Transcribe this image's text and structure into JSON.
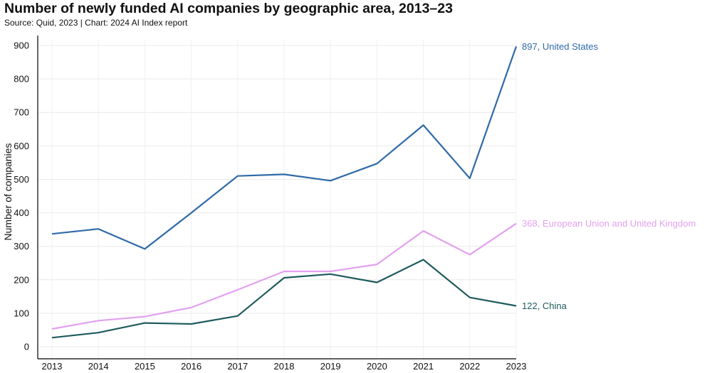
{
  "chart_data": {
    "type": "line",
    "title": "Number of newly funded AI companies by geographic area, 2013–23",
    "subtitle": "Source: Quid, 2023 | Chart: 2024 AI Index report",
    "xlabel": "",
    "ylabel": "Number of companies",
    "x": [
      "2013",
      "2014",
      "2015",
      "2016",
      "2017",
      "2018",
      "2019",
      "2020",
      "2021",
      "2022",
      "2023"
    ],
    "ylim": [
      0,
      900
    ],
    "yticks": [
      0,
      100,
      200,
      300,
      400,
      500,
      600,
      700,
      800,
      900
    ],
    "grid": true,
    "series": [
      {
        "name": "United States",
        "color": "#2f6aa8",
        "values": [
          337,
          352,
          292,
          400,
          510,
          515,
          496,
          547,
          662,
          503,
          897
        ],
        "end_label": "897, United States"
      },
      {
        "name": "European Union and United Kingdom",
        "color": "#e3a0f0",
        "values": [
          53,
          78,
          90,
          117,
          170,
          225,
          225,
          246,
          346,
          275,
          368
        ],
        "end_label": "368, European Union and United Kingdom"
      },
      {
        "name": "China",
        "color": "#1f5b5e",
        "values": [
          27,
          42,
          71,
          68,
          92,
          206,
          217,
          192,
          260,
          147,
          122
        ],
        "end_label": "122, China"
      }
    ]
  }
}
